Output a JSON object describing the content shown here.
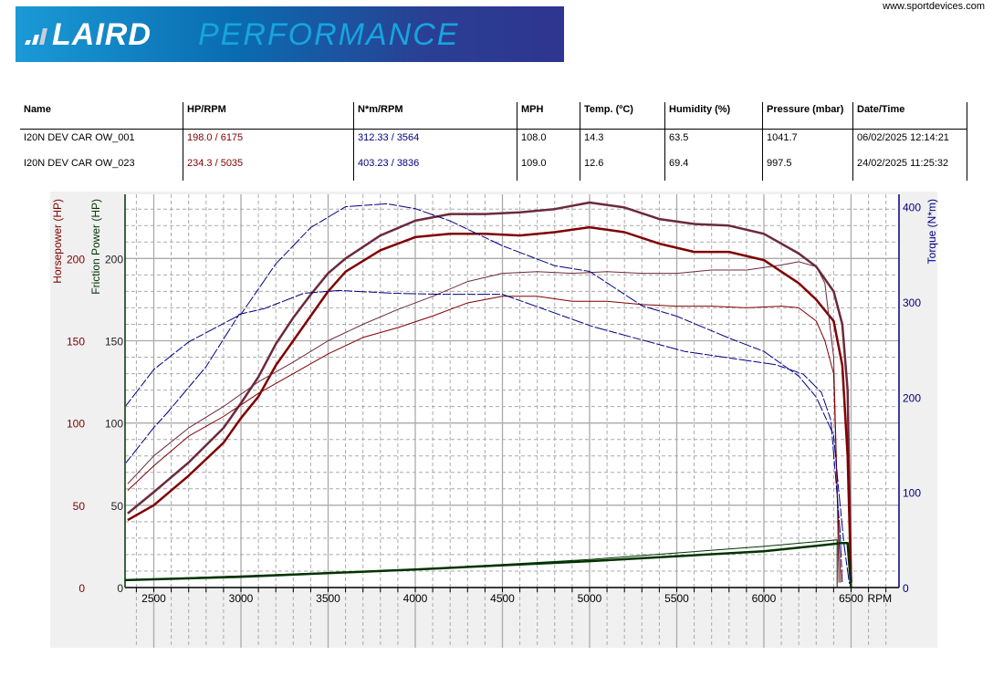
{
  "header": {
    "logo_text_bold": "LAIRD",
    "logo_text_light": "PERFORMANCE",
    "site": "www.sportdevices.com"
  },
  "table": {
    "columns": [
      "Name",
      "HP/RPM",
      "N*m/RPM",
      "MPH",
      "Temp. (ºC)",
      "Humidity (%)",
      "Pressure (mbar)",
      "Date/Time"
    ],
    "rows": [
      [
        "I20N DEV CAR OW_001",
        "198.0 / 6175",
        "312.33 / 3564",
        "108.0",
        "14.3",
        "63.5",
        "1041.7",
        "06/02/2025 12:14:21"
      ],
      [
        "I20N DEV CAR OW_023",
        "234.3 / 5035",
        "403.23 / 3836",
        "109.0",
        "12.6",
        "69.4",
        "997.5",
        "24/02/2025 11:25:32"
      ]
    ]
  },
  "chart_data": {
    "type": "line",
    "xlabel": "RPM",
    "ylabel_left": "Horsepower (HP)",
    "ylabel_left2": "Friction Power (HP)",
    "ylabel_right": "Torque (N*m)",
    "xlim": [
      2335,
      6775
    ],
    "ylim_left": [
      0,
      239
    ],
    "ylim_right": [
      0,
      413
    ],
    "x_ticks": [
      2500,
      3000,
      3500,
      4000,
      4500,
      5000,
      5500,
      6000,
      6500
    ],
    "y_ticks_left": [
      0,
      50,
      100,
      150,
      200
    ],
    "y_ticks_right": [
      0,
      100,
      200,
      300,
      400
    ],
    "grid": true,
    "colors": {
      "hp_red": "#800000",
      "hp_purple": "#6b2a3c",
      "torque": "#000080",
      "friction": "#003300"
    },
    "series": [
      {
        "axis": "left",
        "color": "#6b2a3c",
        "width": 2.5,
        "points": [
          [
            2350,
            45
          ],
          [
            2500,
            58
          ],
          [
            2700,
            76
          ],
          [
            2900,
            97
          ],
          [
            3000,
            112
          ],
          [
            3100,
            128
          ],
          [
            3200,
            148
          ],
          [
            3300,
            164
          ],
          [
            3400,
            178
          ],
          [
            3500,
            191
          ],
          [
            3600,
            200
          ],
          [
            3800,
            214
          ],
          [
            4000,
            223
          ],
          [
            4200,
            227
          ],
          [
            4400,
            227
          ],
          [
            4600,
            228
          ],
          [
            4800,
            230
          ],
          [
            5000,
            234
          ],
          [
            5200,
            231
          ],
          [
            5400,
            224
          ],
          [
            5600,
            221
          ],
          [
            5800,
            220
          ],
          [
            6000,
            215
          ],
          [
            6200,
            203
          ],
          [
            6300,
            195
          ],
          [
            6400,
            180
          ],
          [
            6450,
            160
          ],
          [
            6480,
            120
          ],
          [
            6500,
            3
          ]
        ]
      },
      {
        "axis": "left",
        "color": "#800000",
        "width": 2.5,
        "points": [
          [
            2350,
            41
          ],
          [
            2500,
            50
          ],
          [
            2700,
            68
          ],
          [
            2900,
            88
          ],
          [
            3000,
            103
          ],
          [
            3100,
            116
          ],
          [
            3200,
            135
          ],
          [
            3300,
            150
          ],
          [
            3400,
            165
          ],
          [
            3500,
            180
          ],
          [
            3600,
            192
          ],
          [
            3800,
            205
          ],
          [
            4000,
            213
          ],
          [
            4200,
            215
          ],
          [
            4400,
            215
          ],
          [
            4600,
            214
          ],
          [
            4800,
            216
          ],
          [
            5000,
            219
          ],
          [
            5200,
            216
          ],
          [
            5400,
            209
          ],
          [
            5600,
            204
          ],
          [
            5800,
            204
          ],
          [
            6000,
            199
          ],
          [
            6200,
            185
          ],
          [
            6300,
            175
          ],
          [
            6400,
            162
          ],
          [
            6450,
            135
          ],
          [
            6480,
            80
          ],
          [
            6500,
            3
          ]
        ]
      },
      {
        "axis": "left",
        "color": "#6b2a3c",
        "width": 1,
        "points": [
          [
            2350,
            63
          ],
          [
            2500,
            80
          ],
          [
            2700,
            97
          ],
          [
            2900,
            110
          ],
          [
            3100,
            125
          ],
          [
            3300,
            137
          ],
          [
            3500,
            150
          ],
          [
            3700,
            160
          ],
          [
            3900,
            169
          ],
          [
            4100,
            177
          ],
          [
            4300,
            186
          ],
          [
            4500,
            191
          ],
          [
            4700,
            192
          ],
          [
            4900,
            191
          ],
          [
            5100,
            192
          ],
          [
            5300,
            191
          ],
          [
            5500,
            191
          ],
          [
            5700,
            193
          ],
          [
            5900,
            193
          ],
          [
            6100,
            196
          ],
          [
            6200,
            198
          ],
          [
            6300,
            195
          ],
          [
            6350,
            185
          ],
          [
            6400,
            140
          ],
          [
            6420,
            60
          ],
          [
            6430,
            3
          ]
        ]
      },
      {
        "axis": "left",
        "color": "#800000",
        "width": 1,
        "points": [
          [
            2350,
            59
          ],
          [
            2500,
            74
          ],
          [
            2700,
            92
          ],
          [
            2900,
            104
          ],
          [
            3100,
            118
          ],
          [
            3300,
            130
          ],
          [
            3500,
            142
          ],
          [
            3700,
            152
          ],
          [
            3900,
            158
          ],
          [
            4100,
            165
          ],
          [
            4300,
            173
          ],
          [
            4500,
            177
          ],
          [
            4700,
            177
          ],
          [
            4900,
            174
          ],
          [
            5100,
            174
          ],
          [
            5300,
            172
          ],
          [
            5500,
            171
          ],
          [
            5700,
            171
          ],
          [
            5900,
            170
          ],
          [
            6100,
            171
          ],
          [
            6200,
            170
          ],
          [
            6300,
            162
          ],
          [
            6350,
            150
          ],
          [
            6400,
            130
          ],
          [
            6420,
            60
          ],
          [
            6440,
            3
          ]
        ]
      },
      {
        "axis": "right",
        "color": "#000080",
        "width": 1,
        "dash": true,
        "points": [
          [
            2340,
            191
          ],
          [
            2500,
            229
          ],
          [
            2700,
            258
          ],
          [
            3000,
            287
          ],
          [
            3200,
            340
          ],
          [
            3400,
            378
          ],
          [
            3600,
            400
          ],
          [
            3836,
            403
          ],
          [
            4000,
            398
          ],
          [
            4200,
            385
          ],
          [
            4500,
            359
          ],
          [
            4800,
            338
          ],
          [
            5000,
            332
          ],
          [
            5300,
            296
          ],
          [
            5500,
            285
          ],
          [
            5800,
            262
          ],
          [
            6000,
            248
          ],
          [
            6200,
            222
          ],
          [
            6300,
            200
          ],
          [
            6400,
            160
          ],
          [
            6430,
            100
          ],
          [
            6460,
            45
          ],
          [
            6490,
            4
          ]
        ]
      },
      {
        "axis": "right",
        "color": "#000080",
        "width": 1,
        "dash": true,
        "points": [
          [
            2340,
            131
          ],
          [
            2500,
            168
          ],
          [
            2575,
            183
          ],
          [
            2800,
            232
          ],
          [
            2990,
            287
          ],
          [
            3135,
            293
          ],
          [
            3360,
            309
          ],
          [
            3564,
            312
          ],
          [
            3880,
            309
          ],
          [
            4145,
            308
          ],
          [
            4500,
            308
          ],
          [
            5020,
            274
          ],
          [
            5545,
            248
          ],
          [
            5807,
            241
          ],
          [
            6069,
            234
          ],
          [
            6226,
            224
          ],
          [
            6330,
            205
          ],
          [
            6384,
            176
          ],
          [
            6410,
            119
          ],
          [
            6436,
            61
          ],
          [
            6450,
            4
          ]
        ]
      },
      {
        "axis": "left",
        "color": "#003300",
        "width": 2.5,
        "points": [
          [
            2335,
            4.5
          ],
          [
            3000,
            6.5
          ],
          [
            4000,
            11
          ],
          [
            5000,
            16
          ],
          [
            6000,
            22
          ],
          [
            6450,
            27
          ],
          [
            6480,
            27
          ],
          [
            6500,
            0
          ]
        ]
      },
      {
        "axis": "left",
        "color": "#003300",
        "width": 1,
        "points": [
          [
            2335,
            4.5
          ],
          [
            4000,
            11
          ],
          [
            5000,
            17
          ],
          [
            6000,
            25
          ],
          [
            6420,
            29
          ],
          [
            6420,
            0
          ]
        ]
      }
    ]
  }
}
